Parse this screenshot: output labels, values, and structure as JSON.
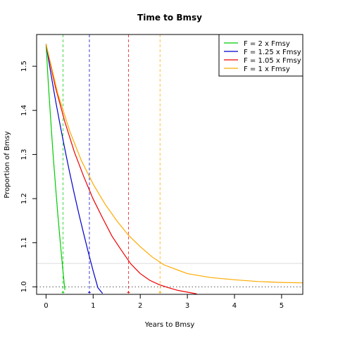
{
  "chart_data": {
    "type": "line",
    "title": "Time to Bmsy",
    "xlabel": "Years to Bmsy",
    "ylabel": "Proportion of Bmsy",
    "xlim": [
      -0.2,
      5.45
    ],
    "ylim": [
      0.983,
      1.572
    ],
    "x_ticks": [
      "0",
      "1",
      "2",
      "3",
      "4",
      "5"
    ],
    "y_ticks": [
      "1.0",
      "1.1",
      "1.2",
      "1.3",
      "1.4",
      "1.5"
    ],
    "grid": false,
    "legend_position": "top-right",
    "series": [
      {
        "name": "F = 2 x Fmsy",
        "color": "#00cc00",
        "x": [
          0,
          0.05,
          0.1,
          0.15,
          0.2,
          0.25,
          0.3,
          0.35,
          0.4
        ],
        "y": [
          1.55,
          1.459,
          1.377,
          1.3,
          1.23,
          1.164,
          1.103,
          1.046,
          0.993
        ],
        "time_to_bmsy": 0.36
      },
      {
        "name": "F = 1.25 x Fmsy",
        "color": "#0000cc",
        "x": [
          0,
          0.1,
          0.2,
          0.3,
          0.4,
          0.5,
          0.6,
          0.7,
          0.8,
          0.9,
          1.0,
          1.1,
          1.2
        ],
        "y": [
          1.55,
          1.485,
          1.423,
          1.366,
          1.312,
          1.26,
          1.211,
          1.164,
          1.12,
          1.077,
          1.036,
          0.998,
          0.985
        ],
        "time_to_bmsy": 0.92
      },
      {
        "name": "F = 1.05 x Fmsy",
        "color": "#ee0000",
        "x": [
          0,
          0.2,
          0.4,
          0.6,
          0.8,
          1.0,
          1.2,
          1.4,
          1.6,
          1.8,
          2.0,
          2.2,
          2.4,
          2.6,
          2.8,
          3.0,
          3.2
        ],
        "y": [
          1.55,
          1.452,
          1.374,
          1.306,
          1.25,
          1.199,
          1.156,
          1.115,
          1.083,
          1.052,
          1.03,
          1.015,
          1.005,
          0.998,
          0.992,
          0.988,
          0.984
        ],
        "time_to_bmsy": 1.75
      },
      {
        "name": "F = 1 x Fmsy",
        "color": "#ffaa00",
        "x": [
          0,
          0.25,
          0.5,
          0.75,
          1.0,
          1.25,
          1.5,
          1.75,
          2.0,
          2.25,
          2.5,
          3.0,
          3.5,
          4.0,
          4.5,
          5.0,
          5.45
        ],
        "y": [
          1.55,
          1.438,
          1.354,
          1.286,
          1.233,
          1.188,
          1.15,
          1.117,
          1.091,
          1.068,
          1.05,
          1.03,
          1.021,
          1.016,
          1.012,
          1.01,
          1.009
        ],
        "time_to_bmsy": 2.42
      }
    ],
    "reference_lines": [
      {
        "y": 1.0,
        "style": "dotted",
        "color": "#555555"
      },
      {
        "y": 1.053,
        "style": "solid",
        "color": "#dddddd"
      }
    ]
  }
}
